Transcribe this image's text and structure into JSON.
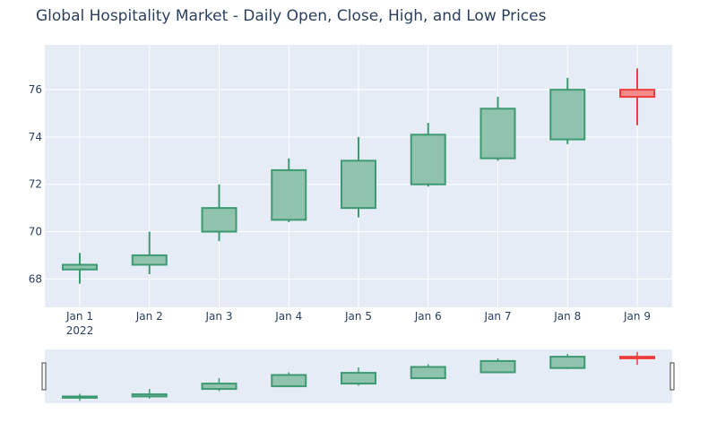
{
  "chart_data": {
    "type": "candlestick",
    "title": "Global Hospitality Market - Daily Open, Close, High, and Low Prices",
    "xlabel": "",
    "ylabel": "",
    "x_ticks": [
      "Jan 1",
      "Jan 2",
      "Jan 3",
      "Jan 4",
      "Jan 5",
      "Jan 6",
      "Jan 7",
      "Jan 8",
      "Jan 9"
    ],
    "x_year_label": "2022",
    "y_ticks": [
      68,
      70,
      72,
      74,
      76
    ],
    "ylim": [
      66.8,
      77.9
    ],
    "grid": true,
    "rangeslider": true,
    "colors": {
      "increasing_line": "#3d9970",
      "increasing_fill": "#8fc3ad",
      "decreasing_line": "#ef3c3c",
      "decreasing_fill": "#f48c8c",
      "plot_bg": "#e5ecf6",
      "grid": "#ffffff"
    },
    "candles": [
      {
        "date": "2022-01-01",
        "open": 68.4,
        "high": 69.1,
        "low": 67.8,
        "close": 68.6
      },
      {
        "date": "2022-01-02",
        "open": 68.6,
        "high": 70.0,
        "low": 68.2,
        "close": 69.0
      },
      {
        "date": "2022-01-03",
        "open": 70.0,
        "high": 72.0,
        "low": 69.6,
        "close": 71.0
      },
      {
        "date": "2022-01-04",
        "open": 70.5,
        "high": 73.1,
        "low": 70.4,
        "close": 72.6
      },
      {
        "date": "2022-01-05",
        "open": 71.0,
        "high": 74.0,
        "low": 70.6,
        "close": 73.0
      },
      {
        "date": "2022-01-06",
        "open": 72.0,
        "high": 74.6,
        "low": 71.9,
        "close": 74.1
      },
      {
        "date": "2022-01-07",
        "open": 73.1,
        "high": 75.7,
        "low": 73.0,
        "close": 75.2
      },
      {
        "date": "2022-01-08",
        "open": 73.9,
        "high": 76.5,
        "low": 73.7,
        "close": 76.0
      },
      {
        "date": "2022-01-09",
        "open": 76.0,
        "high": 76.9,
        "low": 74.5,
        "close": 75.7
      }
    ]
  }
}
